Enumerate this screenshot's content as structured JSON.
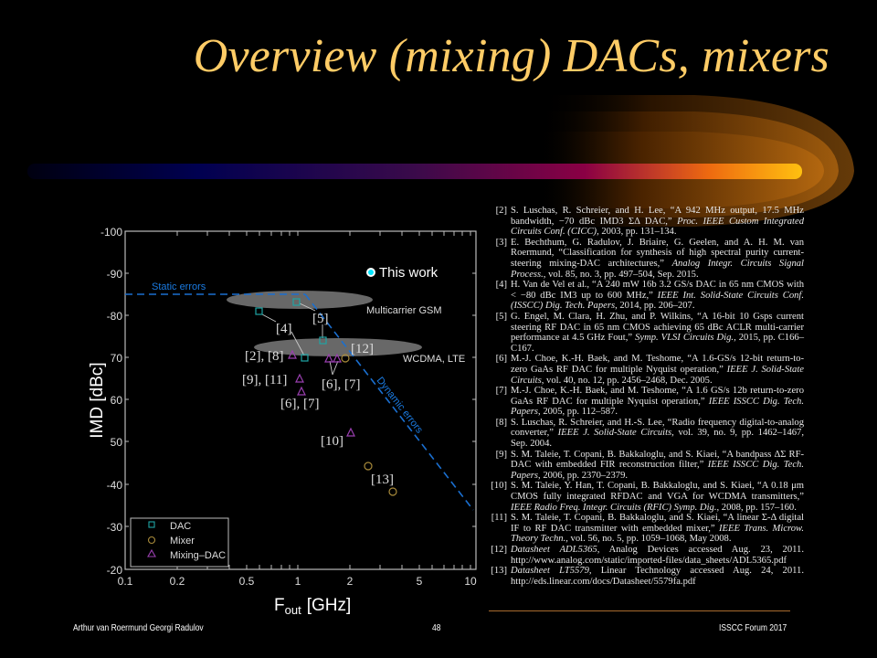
{
  "slide": {
    "title": "Overview (mixing) DACs, mixers",
    "footer": {
      "authors": "Arthur van Roermund Georgi Radulov",
      "page_number": "48",
      "event": "ISSCC  Forum 2017"
    },
    "colors": {
      "title": "#ffcc66",
      "background": "#000000",
      "dac": "#1fa5a5",
      "mixer": "#a88a3a",
      "mixing_dac": "#9a3fb0",
      "this_work": "#00e5ff",
      "error_lines": "#1a6fd0",
      "region": "#808080"
    }
  },
  "chart_data": {
    "type": "scatter",
    "title": "",
    "xlabel": "F_out [GHz]",
    "xlabel_main": "F",
    "xlabel_sub": "out",
    "xlabel_unit": "[GHz]",
    "ylabel": "IMD [dBc]",
    "xscale": "log",
    "xlim": [
      0.1,
      11
    ],
    "ylim": [
      -100,
      -20
    ],
    "x_ticks": [
      0.1,
      0.2,
      0.5,
      1,
      2,
      5,
      10
    ],
    "x_tick_labels": [
      "0.1",
      "0.2",
      "0.5",
      "1",
      "2",
      "5",
      "10"
    ],
    "y_ticks": [
      -100,
      -90,
      -80,
      -70,
      -60,
      -50,
      -40,
      -30,
      -20
    ],
    "y_tick_labels": [
      "-100",
      "-90",
      "-80",
      "70",
      "60",
      "50",
      "-40",
      "-30",
      "-20"
    ],
    "grid": false,
    "legend_position": "lower left",
    "legend": [
      "DAC",
      "Mixer",
      "Mixing–DAC"
    ],
    "series": [
      {
        "name": "DAC",
        "marker": "square",
        "points": [
          {
            "x": 0.6,
            "y": -81
          },
          {
            "x": 1.0,
            "y": -83
          },
          {
            "x": 1.4,
            "y": -74
          },
          {
            "x": 1.1,
            "y": -70
          }
        ]
      },
      {
        "name": "Mixer",
        "marker": "circle",
        "points": [
          {
            "x": 1.9,
            "y": -70
          },
          {
            "x": 2.6,
            "y": -44.5
          },
          {
            "x": 3.5,
            "y": -38.5
          }
        ]
      },
      {
        "name": "Mixing–DAC",
        "marker": "triangle",
        "points": [
          {
            "x": 0.9,
            "y": -71
          },
          {
            "x": 1.0,
            "y": -65
          },
          {
            "x": 1.05,
            "y": -62
          },
          {
            "x": 1.5,
            "y": -70
          },
          {
            "x": 1.7,
            "y": -70
          },
          {
            "x": 2.1,
            "y": -52
          }
        ]
      },
      {
        "name": "This work",
        "marker": "filled-circle",
        "points": [
          {
            "x": 2.6,
            "y": -90
          }
        ]
      }
    ],
    "lines": [
      {
        "name": "Static errors",
        "style": "dashed",
        "points": [
          {
            "x": 0.1,
            "y": -85
          },
          {
            "x": 1.1,
            "y": -85
          }
        ]
      },
      {
        "name": "Dynamic errors",
        "style": "dashed",
        "points": [
          {
            "x": 1.1,
            "y": -85
          },
          {
            "x": 10.5,
            "y": -34
          }
        ]
      }
    ],
    "regions": [
      {
        "name": "Multicarrier GSM",
        "cx": 0.95,
        "cy": -83.5,
        "label": "Multicarrier GSM"
      },
      {
        "name": "WCDMA, LTE",
        "cx": 1.7,
        "cy": -72.5,
        "label": "WCDMA, LTE"
      }
    ],
    "annotations": [
      "Static errors",
      "Dynamic errors",
      "Multicarrier GSM",
      "WCDMA, LTE",
      "This work",
      "[5]",
      "[4]",
      "[12]",
      "[2], [8]",
      "[9], [11]",
      "[6], [7]",
      "[6], [7]",
      "[10]",
      "[13]"
    ]
  },
  "plot_labels": {
    "this_work": "This work",
    "static_errors": "Static errors",
    "dynamic_errors": "Dynamic errors",
    "gsm": "Multicarrier GSM",
    "wcdma": "WCDMA, LTE",
    "ref5": "[5]",
    "ref4": "[4]",
    "ref12": "[12]",
    "ref2_8": "[2], [8]",
    "ref9_11": "[9], [11]",
    "ref6_7a": "[6], [7]",
    "ref6_7b": "[6], [7]",
    "ref10": "[10]",
    "ref13": "[13]",
    "legend_dac": "DAC",
    "legend_mixer": "Mixer",
    "legend_mixing_dac": "Mixing–DAC",
    "ylabel": "IMD [dBc]",
    "x_main": "F",
    "x_sub": "out",
    "x_unit": "[GHz]",
    "yt": [
      "-100",
      "-90",
      "-80",
      "70",
      "60",
      "50",
      "-40",
      "-30",
      "-20"
    ],
    "xt": [
      "0.1",
      "0.2",
      "0.5",
      "1",
      "2",
      "5",
      "10"
    ]
  },
  "references": [
    {
      "num": "[2]",
      "plain1": "S. Luschas, R. Schreier, and H. Lee, “A 942 MHz output, 17.5 MHz bandwidth, −70 dBc IMD3 ΣΔ DAC,” ",
      "ital": "Proc. IEEE Custom Integrated Circuits Conf. (CICC)",
      "plain2": ", 2003, pp. 131–134."
    },
    {
      "num": "[3]",
      "plain1": "E. Bechthum, G. Radulov, J. Briaire, G. Geelen, and A. H. M. van Roermund, “Classification for synthesis of high spectral purity current-steering mixing-DAC architectures,” ",
      "ital": "Analog Integr. Circuits Signal Process.",
      "plain2": ", vol. 85, no. 3, pp. 497–504, Sep. 2015."
    },
    {
      "num": "[4]",
      "plain1": "H. Van de Vel et al., “A 240 mW 16b 3.2 GS/s DAC in 65 nm CMOS with < −80 dBc IM3 up to 600 MHz,” ",
      "ital": "IEEE Int. Solid-State Circuits Conf. (ISSCC) Dig. Tech. Papers",
      "plain2": ", 2014, pp. 206–207."
    },
    {
      "num": "[5]",
      "plain1": "G. Engel, M. Clara, H. Zhu, and P. Wilkins, “A 16-bit 10 Gsps current steering RF DAC in 65 nm CMOS achieving 65 dBc ACLR multi-carrier performance at 4.5 GHz Fout,” ",
      "ital": "Symp. VLSI Circuits Dig.",
      "plain2": ", 2015, pp. C166–C167."
    },
    {
      "num": "[6]",
      "plain1": "M.-J. Choe, K.-H. Baek, and M. Teshome, “A 1.6-GS/s 12-bit return-to-zero GaAs RF DAC for multiple Nyquist operation,” ",
      "ital": "IEEE J. Solid-State Circuits",
      "plain2": ", vol. 40, no. 12, pp. 2456–2468, Dec. 2005."
    },
    {
      "num": "[7]",
      "plain1": "M.-J. Choe, K.-H. Baek, and M. Teshome, “A 1.6 GS/s 12b return-to-zero GaAs RF DAC for multiple Nyquist operation,” ",
      "ital": "IEEE ISSCC Dig. Tech. Papers",
      "plain2": ", 2005, pp. 112–587."
    },
    {
      "num": "[8]",
      "plain1": "S. Luschas, R. Schreier, and H.-S. Lee, “Radio frequency digital-to-analog converter,” ",
      "ital": "IEEE J. Solid-State Circuits",
      "plain2": ", vol. 39, no. 9, pp. 1462–1467, Sep. 2004."
    },
    {
      "num": "[9]",
      "plain1": "S. M. Taleie, T. Copani, B. Bakkaloglu, and S. Kiaei, “A bandpass ΔΣ RF-DAC with embedded FIR reconstruction filter,” ",
      "ital": "IEEE ISSCC Dig. Tech. Papers",
      "plain2": ", 2006, pp. 2370–2379."
    },
    {
      "num": "[10]",
      "plain1": "S. M. Taleie, Y. Han, T. Copani, B. Bakkaloglu, and S. Kiaei, “A 0.18 μm CMOS fully integrated RFDAC and VGA for WCDMA transmitters,” ",
      "ital": "IEEE Radio Freq. Integr. Circuits (RFIC) Symp. Dig.",
      "plain2": ", 2008, pp. 157–160."
    },
    {
      "num": "[11]",
      "plain1": "S. M. Taleie, T. Copani, B. Bakkaloglu, and S. Kiaei, “A linear Σ-Δ digital IF to RF DAC transmitter with embedded mixer,” ",
      "ital": "IEEE Trans. Microw. Theory Techn.",
      "plain2": ", vol. 56, no. 5, pp. 1059–1068, May 2008."
    },
    {
      "num": "[12]",
      "plain1": "",
      "ital": "Datasheet ADL5365",
      "plain2": ", Analog Devices accessed Aug. 23, 2011. http://www.analog.com/static/imported-files/data_sheets/ADL5365.pdf"
    },
    {
      "num": "[13]",
      "plain1": "",
      "ital": "Datasheet LT5579",
      "plain2": ", Linear Technology accessed Aug. 24, 2011. http://eds.linear.com/docs/Datasheet/5579fa.pdf"
    }
  ]
}
